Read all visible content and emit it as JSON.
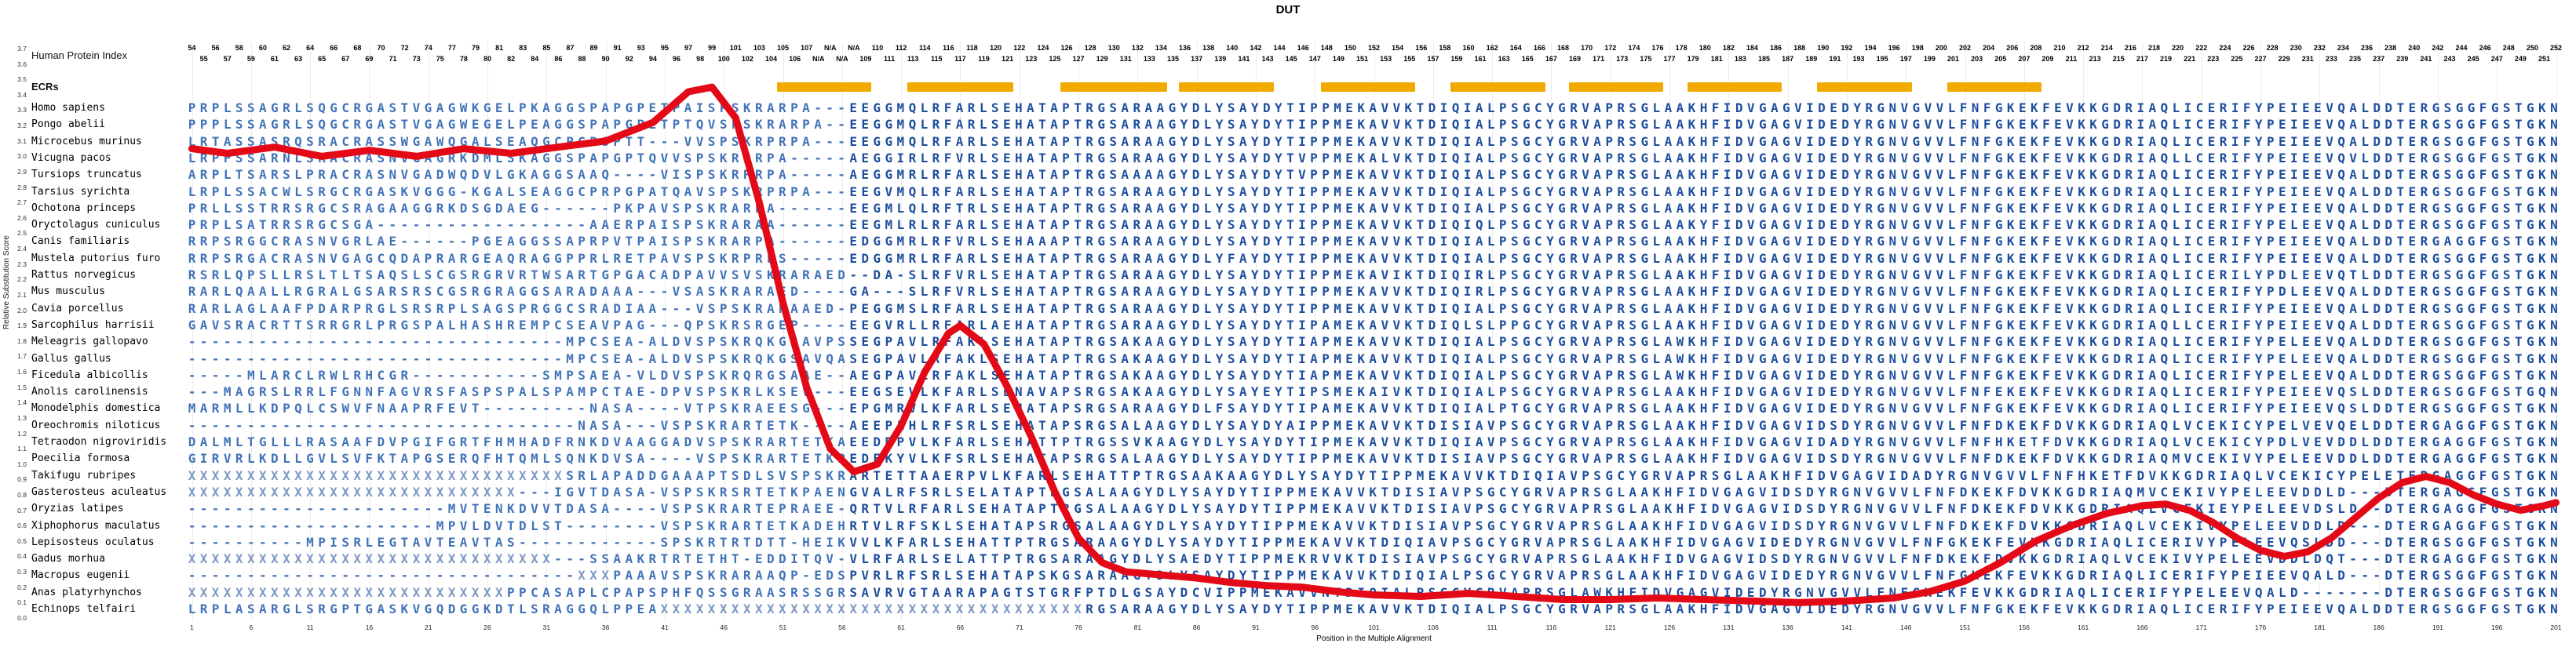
{
  "title": "DUT",
  "header": {
    "human_protein_index": "Human Protein Index",
    "ecrs_label": "ECRs"
  },
  "y_axis": {
    "title": "Relative Substitution Score",
    "labels": [
      "3.7",
      "3.6",
      "3.5",
      "3.4",
      "3.3",
      "3.2",
      "3.1",
      "3.0",
      "2.9",
      "2.8",
      "2.7",
      "2.6",
      "2.5",
      "2.4",
      "2.3",
      "2.2",
      "2.1",
      "2.0",
      "1.9",
      "1.8",
      "1.7",
      "1.6",
      "1.5",
      "1.4",
      "1.3",
      "1.2",
      "1.1",
      "1.0",
      "0.9",
      "0.8",
      "0.7",
      "0.6",
      "0.5",
      "0.4",
      "0.3",
      "0.2",
      "0.1",
      "0.0"
    ]
  },
  "x_axis": {
    "title": "Position in the Multiple Alignment",
    "ticks": [
      1,
      6,
      11,
      16,
      21,
      26,
      31,
      36,
      41,
      46,
      51,
      56,
      61,
      66,
      71,
      76,
      81,
      86,
      91,
      96,
      101,
      106,
      111,
      116,
      121,
      126,
      131,
      136,
      141,
      146,
      151,
      156,
      161,
      166,
      171,
      176,
      181,
      186,
      191,
      196,
      201
    ]
  },
  "index_row_top": [
    "54",
    "56",
    "58",
    "60",
    "62",
    "64",
    "66",
    "68",
    "70",
    "72",
    "74",
    "77",
    "79",
    "81",
    "83",
    "85",
    "87",
    "89",
    "91",
    "93",
    "95",
    "97",
    "99",
    "101",
    "103",
    "105",
    "107",
    "N/A",
    "N/A",
    "110",
    "112",
    "114",
    "116",
    "118",
    "120",
    "122",
    "124",
    "126",
    "128",
    "130",
    "132",
    "134",
    "136",
    "138",
    "140",
    "142",
    "144",
    "146",
    "148",
    "150",
    "152",
    "154",
    "156",
    "158",
    "160",
    "162",
    "164",
    "166",
    "168",
    "170",
    "172",
    "174",
    "176",
    "178",
    "180",
    "182",
    "184",
    "186",
    "188",
    "190",
    "192",
    "194",
    "196",
    "198",
    "200",
    "202",
    "204",
    "206",
    "208",
    "210",
    "212",
    "214",
    "216",
    "218",
    "220",
    "222",
    "224",
    "226",
    "228",
    "230",
    "232",
    "234",
    "236",
    "238",
    "240",
    "242",
    "244",
    "246",
    "248",
    "250",
    "252"
  ],
  "index_row_bottom": [
    "55",
    "57",
    "59",
    "61",
    "63",
    "65",
    "67",
    "69",
    "71",
    "73",
    "75",
    "78",
    "80",
    "82",
    "84",
    "86",
    "88",
    "90",
    "92",
    "94",
    "96",
    "98",
    "100",
    "102",
    "104",
    "106",
    "N/A",
    "N/A",
    "109",
    "111",
    "113",
    "115",
    "117",
    "119",
    "121",
    "123",
    "125",
    "127",
    "129",
    "131",
    "133",
    "135",
    "137",
    "139",
    "141",
    "143",
    "145",
    "147",
    "149",
    "151",
    "153",
    "155",
    "157",
    "159",
    "161",
    "163",
    "165",
    "167",
    "169",
    "171",
    "173",
    "175",
    "177",
    "179",
    "181",
    "183",
    "185",
    "187",
    "189",
    "191",
    "193",
    "195",
    "197",
    "199",
    "201",
    "203",
    "205",
    "207",
    "209",
    "211",
    "213",
    "215",
    "217",
    "219",
    "221",
    "223",
    "225",
    "227",
    "229",
    "231",
    "233",
    "235",
    "237",
    "239",
    "241",
    "243",
    "245",
    "247",
    "249",
    "251"
  ],
  "ecr_regions": [
    [
      51,
      58
    ],
    [
      62,
      70
    ],
    [
      75,
      83
    ],
    [
      85,
      92
    ],
    [
      97,
      104
    ],
    [
      108,
      115
    ],
    [
      118,
      125
    ],
    [
      128,
      135
    ],
    [
      139,
      146
    ],
    [
      150,
      157
    ]
  ],
  "species": [
    {
      "name": "Homo sapiens",
      "sequence": "PRPLSSAGRLSQGCRGASTVGAGWKGELPKAGGSPAPGPETPAISPSKRARPA---EEGGMQLRFARLSEHATAPTRGSARAAGYDLYSAYDYTIPPMEKAVVKTDIQIALPSGCYGRVAPRSGLAAKHFIDVGAGVIDEDYRGNVGVVLFNFGKEKFEVKKGDRIAQLICERIFYPEIEEVQALDDTERGSGGFGSTGKN"
    },
    {
      "name": "Pongo abelii",
      "sequence": "PPPLSSAGRLSQGCRGASTVGAGWEGELPEAGGSPAPGPETPTQVSPSKRARPA--EEGGMQLRFARLSEHATAPTRGSARAAGYDLYSAYDYTIPPMEKAVVKTDIQIALPSGCYGRVAPRSGLAAKHFIDVGAGVIDEDYRGNVGVVLFNFGKEKFEVKKGDRIAQLICERIFYPEIEEVQALDDTERGSGGFGSTGKN"
    },
    {
      "name": "Microcebus murinus",
      "sequence": "LRTASSASRQSRACRASSWGAWQGALSEAQGCPGPSPTT---VVSPSKRPRPA---EEGGMQLRFARLSEHATAPTRGSARAAGYDLYSAYDYTIPPMEKAVVKTDIQIALPSGCYGRVAPRSGLAAKHFIDVGAGVIDEDYRGNVGVVLFNFGKEKFEVKKGDRIAQLICERIFYPEIEEVQALDDTERGSGGFGSTGKN"
    },
    {
      "name": "Vicugna pacos",
      "sequence": "LRPPSSARNLSRACRASNVGAGRKDMLSKAGGSPAPGPTQVVSPSKRPRPA-----AEGGIRLRFVRLSEHATAPTRGSARAAGYDLYSAYDYTVPPMEKALVKTDIQIALPSGCYGRVAPRSGLAAKHFIDVGAGVIDEDYRGNVGVVLFNFGKEKFEVKKGDRIAQLLCERIFYPEIEEVQVLDDTERGSGGFGSTGKN"
    },
    {
      "name": "Tursiops truncatus",
      "sequence": "ARPLTSARSLPRACRASNVGADWQDVLGKAGGSAAQ----VISPSKRPRPA-----AEGGMRLRFARLSEHATAPTRGSAAAAGYDLYSAYDYTVPPMEKAVVKTDIQIALPSGCYGRVAPRSGLAAKHFIDVGAGVIDEDYRGNVGVVLFNFGKEKFEVKKGDRIAQLICERIFYPEIEEVQALDDTERGSGGFGSTGKN"
    },
    {
      "name": "Tarsius syrichta",
      "sequence": "LRPLSSACWLSRGCRGASKVGGG-KGALSEAGGCPRPGPATQAVSPSKRPRPA---EEGVMQLRFARLSEHATAPTRGSARAAGYDLYSAYDYTIPPMEKAVVKTDIQIALPSGCYGRVAPRSGLAAKHFIDVGAGVIDEDYRGNVGVVLFNFGKEKFEVKKGDRIAQLICERIFYPEIEEVQALDDTERGSGGFGSTGKN"
    },
    {
      "name": "Ochotona princeps",
      "sequence": "PRLLSSTRRSRGCSRAGAAGGRKDSGDAEG------PKPAVSPSKRARPA------EEGMLQLRFTRLSEHATAPTRGSARAAGYDLYSAYDYTIPPMEKAVVKTDIQIALPSGCYGRVAPRSGLAAKHFIDVGAGVIDEDYRGNVGVVLFNFGKEKFEVKKGDRIAQLICERIFYPEIEEVQALDDTERGSGGFGSTGKN"
    },
    {
      "name": "Oryctolagus cuniculus",
      "sequence": "PRPLSATRRSRGCSGA------------------AAERPAISPSKRARAA------EEGMLRLRFARLSEHATAPTRGSARAAGYDLYSAYDYTIPPMEKAVVKTDIQIQLPSGCYGRVAPRSGLAAKYFIDVGAGVIDEDYRGNVGVVLFNFGKEKFEVKKGDRIAQLICERIFYPELEEVQALDDTERGSGGFGSTGKN"
    },
    {
      "name": "Canis familiaris",
      "sequence": "RRPSRGGCRASNVGRLAE------PGEAGGSSAPRPVTPAISPSKRARPA------EDGGMRLRFVRLSEHAAAPTRGSARAAGYDLYSAYDYTIPPMEKAVVKTDIQIALPSGCYGRVAPRSGLAAKHFIDVGAGVIDEDYRGNVGVVLFNFGKEKFEVKKGDRIAQLICERIFYPEIEEVQALDDTERGAGGFGSTGKN"
    },
    {
      "name": "Mustela putorius furo",
      "sequence": "RRPSRGACRASNVGAGCQDAPRARGEAQRAGGPPRLRETPAVSPSKRPRPS-----EDGGMRLRFARLSEHATAPTRGSARAAGYDLYFAYDYTIPPMEKAVVKTDIQIALPSGCYGRVAPRSGLAAKHFIDVGAGVIDEDYRGNVGVVLFNFGKEKFEVKKGDRIAQLICERIFYPEIEEVQALDDTERGSGGFGSTGKN"
    },
    {
      "name": "Rattus norvegicus",
      "sequence": "RSRLQPSLLRSLTLTSAQSLSCGSRGRVRTWSARTGPGACADPAVVSVSKRARAED--DA-SLRFVRLSEHATAPTRGSARAAGYDLYSAYDYTIPPMEKAVIKTDIQIRLPSGCYGRVAPRSGLAAKHFIDVGAGVIDEDYRGNVGVVLFNFGKEKFEVKKGDRIAQLICERILYPDLEEVQTLDDTERGSGGFGSTGKN"
    },
    {
      "name": "Mus musculus",
      "sequence": "RARLQAALLRGRALGSARSRSCGSRGRAGGSARADAAA---VSASKRARAED----GA---SLRFVRLSEHATAPTRGSARAAGYDLYSAYDYTIPPMEKAVVKTDIQIRLPSGCYGRVAPRSGLAAKHFIDVGAGVIDEDYRGNVGVVLFNFGKEKFEVKKGDRIAQLICERIFYPDLEEVQALDDTERGSGGFGSTGKN"
    },
    {
      "name": "Cavia porcellus",
      "sequence": "RARLAGLAAFPDARPRGLSRSRPLSAGSPRGGCSRADIAA---VSPSKRARAAED-PEGGMSLRFARLSEHATAPTRGSARAAGYDLYSAYDYTIPPMEKAVVKTDIQIALPSGCYGRVAPRSGLAAKHFIDVGAGVIDEDYRGNVGVVLFNFGKEKFEVKKGDRIAQLICERIFYPEIEEVQALDDTERGSGGFGSTGKN"
    },
    {
      "name": "Sarcophilus harrisii",
      "sequence": "GAVSRACRTTSRRGRLPRGSPALHASHREMPCSEAVPAG---QPSKRSRGEP----EEGVRLLRFARLAEHATAPTRGSARAAGYDLYSAYDYTIPAMEKAVVKTDIQLSLPPGCYGRVAPRSGLAAKHFIDVGAGVIDEDYRGNVGVVLFNFGKEKFEVKKGDRIAQLLCERIFYPEIEEVQALDDTERGSGGFGSTGKN"
    },
    {
      "name": "Meleagris gallopavo",
      "sequence": "--------------------------------MPCSEA-ALDVSPSKRQKGSAVPSSEGPAVLRFAKLSEHATAPTRGSAKAAGYDLYSAYDYTIAPMEKAVVKTDIQIALPSGCYGRVAPRSGLAWKHFIDVGAGVIDEDYRGNVGVVLFNFGKEKFEVKKGDRIAQLICERIFYPELEEVQALDDTERGSGGFGSTGKN"
    },
    {
      "name": "Gallus gallus",
      "sequence": "--------------------------------MPCSEA-ALDVSPSKRQKGSAVQASEGPAVLRFAKLSEHATAPTRGSAKAAGYDLYSAYDYTIAPMEKAVVKTDIQIALPSGCYGRVAPRSGLAWKHFIDVGAGVIDEDYRGNVGVVLFNFGKEKFEVKKGDRIAQLICERIFYPELEEVQALDDTERGSGGFGSTGKN"
    },
    {
      "name": "Ficedula albicollis",
      "sequence": "-----MLARCLRWLRHCGR-----------SMPSAEA-VLDVSPSKRQRGSAAE--AEGPAVLRFAKLSEHATAPTRGSAKAAGYDLYSAYDYTIAPMEKAVVKTDIQIALPSGCYGRVAPRSGLAWKHFIDVGAGVIDEDYRGNVGVVLFNFGKEKFEVKKGDRIAQLICERIFYPELEEVQALDDTERGSGGFGSTGKN"
    },
    {
      "name": "Anolis carolinensis",
      "sequence": "---MAGRSLRRLFGNNFAGVRSFASPSPALSPAMPCTAE-DPVSPSKRLKSEV---EEGSEVLKFARLSENAVAPSRGSAKAAGYDLYSAYEYTIPSMEKAIVKTDIQIALPSGCYGRVAPRSGLAAKHFIDVGAGVIDEDYRGNVGVVLFNFEKEKFEVKKGDRIAQLICERIFYPEIEEVQSLDDTERGSGGFGSTGQN"
    },
    {
      "name": "Monodelphis domestica",
      "sequence": "MARMLLKDPQLCSWVFNAAPRFEVT---------NASA----VTPSKRAEESG---EPGMRVLKFARLSEHATAPSRGSARAAGYDLFSAYDYTIPAMEKAVVKTDIQIALPTGCYGRVAPRSGLAAKHFIDVGAGVIDEDYRGNVGVVLFNFGKEKFEVKKGDRIAQLICERIFYPEIEEVQSLDDTERGSGGFGSTGKN"
    },
    {
      "name": "Oreochromis niloticus",
      "sequence": "---------------------------------NASA---VSPSKRARTETK----AEEPLHLRFSRLSEHATAPSRGSALAAGYDLYSAYDYAIPPMEKAVVKTDISIAVPSGCYGRVAPRSGLAAKHFIDVGAGVIDSDYRGNVGVVLFNFDKEKFDVKKGDRIAQLVCEKICYPELVEVQELDDTERGAGGFGSTGKN"
    },
    {
      "name": "Tetraodon nigroviridis",
      "sequence": "DALMLTGLLLRASAAFDVPGIFGRTFHMHADFRNKDVAAGGADVSPSKRARTETKAEEDRPVLKFARLSEHATTPTRGSSVKAAGYDLYSAYDYTIPMEKAVVKTDIQIAVPSGCYGRVAPRSGLAAKHFIDVGAGVIDADYRGNVGVVLFNFHKETFDVKKGDRIAQLVCEKICYPDLVEVDDLDDTERGAGGFGSTGKN"
    },
    {
      "name": "Poecilia formosa",
      "sequence": "GIRVRLKDLLGVLSVFKTAPGSERQFHTQMLSQNKDVSA----VSPSKRARTETKPEDEKYVLKFSRLSEHATAPSRGSALAAGYDLYSAYDYTIPPMEKAVVKTDISIAVPSGCYGRVAPRSGLAAKHFIDVGAGVIDSDYRGNVGVVLFNFDKEKFDVKKGDRIAQMVCEKIVYPELEEVDDLDDTERGAGGFGSTGKN"
    },
    {
      "name": "Takifugu rubripes",
      "sequence": "XXXXXXXXXXXXXXXXXXXXXXXXXXXXXXXXSRLAPADDGAAAPTSDLSVSPSKRARTETTAAERPVLKFARLSEHATTPTRGSAAKAAGYDLYSAYDYTIPPMEKAVVKTDIQIAVPSGCYGRVAPRSGLAAKHFIDVGAGVIDADYRGNVGVVLFNFHKETFDVKKGDRIAQLVCEKICYPELETERGAGGFGSTGKN"
    },
    {
      "name": "Gasterosteus aculeatus",
      "sequence": "XXXXXXXXXXXXXXXXXXXXXXXXXXXX---IGVTDASA-VSPSKRSRTETKPAENGVALRFSRLSELATAPTRGSALAAGYDLYSAYDYTIPPMEKAVVKTDISIAVPSGCYGRVAPRSGLAAKHFIDVGAGVIDSDYRGNVGVVLFNFDKEKFDVKKGDRIAQMVCEKIVYPELEEVDDLD---DTERGAGGFGSTGKN"
    },
    {
      "name": "Oryzias latipes",
      "sequence": "----------------------MVTENKDVVTDASA----VSPSKRARTEPRAEE-QRTVLRFARLSEHATAPTRGSALAAGYDLYSAYDYTIPPMEKAVVKTDISIAVPSGCYGRVAPRSGLAAKHFIDVGAGVIDSDYRGNVGVVLFNFDKEKFDVKKGDRIAQLVCEKIEYPELEEVDSLD--DTERGAGGFGSTGKN"
    },
    {
      "name": "Xiphophorus maculatus",
      "sequence": "---------------------MPVLDVTDLST--------VSPSKRARTETKADEHRTVLRFSKLSEHATAPSRGSALAAGYDLYSAYDYTIPPMEKAVVKTDISIAVPSGCYGRVAPRSGLAAKHFIDVGAGVIDSDYRGNVGVVLFNFDKEKFDVKKGDRIAQLVCEKIVYPELEEVDDLD---DTERGAGGFGSTGKN"
    },
    {
      "name": "Lepisosteus oculatus",
      "sequence": "----------MPISRLEGTAVTEAVTAS------------SPSKRTRTDTT-HEIKVVLKFARLSEHATTPTRGSARAAGYDLYSAYDYTIPPMEKAVVKTDIQIAVPSGCYGRVAPRSGLAAKHFIDVGAGVIDEDYRGNVGVVLFNFGKEKFEVKKGDRIAQLICERIVYPELEEVQSLDD---DTERGSGGFGSTGKN"
    },
    {
      "name": "Gadus morhua",
      "sequence": "XXXXXXXXXXXXXXXXXXXXXXXXXXXXXXX---SSAAKRTRTETHT-EDDITQV-VLRFARLSELATTPTRGSARAAGYDLYSAEDYTIPPMEKRVVKTDISIAVPSGCYGRVAPRSGLAAKHFIDVGAGVIDSDYRGNVGVVLFNFDKEKFDVKKGDRIAQLVCEKIVYPELEEVDDLDQT---DTERGAGGFGSTGKN"
    },
    {
      "name": "Macropus eugenii",
      "sequence": "---------------------------------XXXPAAAVSPSKRARAAQP-EDSPVRLRFSRLSEHATAPSKGSARAAGYDLYSAYDYTIPPMEKAVVKTDIQIALPSGCYGRVAPRSGLAAKHFIDVGAGVIDEDYRGNVGVVLFNFGKEKFEVKKGDRIAQLICERIFYPEIEEVQALD---DTERGSGGFGSTGKN"
    },
    {
      "name": "Anas platyrhynchos",
      "sequence": "XXXXXXXXXXXXXXXXXXXXXXXXXXXPPCASAPLCPAPSPHFQSSGRAASRSSGRSAVRVGTAARAPAGTSTGRFPTDLGSAYDCVIPPMEKAVVNTDIQIALPSGCYGRVAPRSGLAWKHFIDVGAGVIDEDYRGNVGVVLFNFGKEKFEVKKGDRIAQLICERIFYPELEEVQALD-------DTERGSGGFGSTGKN"
    },
    {
      "name": "Echinops telfairi",
      "sequence": "LRPLASARGLSRGPTGASKVGQDGGKDTLSRAGGQLPPEAXXXXXXXXXXXXXXXXXXXXXXXXXXXXXXXXXXXXRGSARAAGYDLYSAYDYTIPPMEKAVVKTDIQIALPSGCYGRVAPRSGLAAKHFIDVGAGVIDEDYRGNVGVVLFNFGKEKFEVKKGDRIAQLICERIFYPEIEEVQALDDTERGSGGFGSTGKN"
    }
  ],
  "chart_data": {
    "type": "line",
    "title": "DUT",
    "xlabel": "Position in the Multiple Alignment",
    "ylabel": "Relative Substitution Score",
    "xlim": [
      1,
      201
    ],
    "ylim": [
      0,
      3.7
    ],
    "grid": "faint-vertical",
    "legend_position": "none",
    "ecr_regions": [
      [
        51,
        58
      ],
      [
        62,
        70
      ],
      [
        75,
        83
      ],
      [
        85,
        92
      ],
      [
        97,
        104
      ],
      [
        108,
        115
      ],
      [
        118,
        125
      ],
      [
        128,
        135
      ],
      [
        139,
        146
      ],
      [
        150,
        157
      ]
    ],
    "series": [
      {
        "name": "Relative Substitution Score",
        "x": [
          1,
          4,
          8,
          12,
          16,
          20,
          24,
          28,
          32,
          36,
          40,
          43,
          45,
          47,
          49,
          51,
          53,
          55,
          57,
          59,
          61,
          63,
          65,
          66,
          68,
          70,
          72,
          74,
          76,
          78,
          80,
          83,
          86,
          89,
          92,
          95,
          98,
          101,
          105,
          109,
          113,
          117,
          121,
          125,
          129,
          133,
          137,
          141,
          145,
          148,
          151,
          154,
          157,
          160,
          163,
          166,
          168,
          170,
          172,
          174,
          176,
          178,
          180,
          182,
          184,
          186,
          188,
          190,
          192,
          194,
          196,
          198,
          200,
          201
        ],
        "y": [
          3.05,
          3.02,
          3.06,
          3.0,
          3.04,
          3.0,
          3.05,
          3.02,
          3.06,
          3.1,
          3.22,
          3.42,
          3.45,
          3.25,
          2.7,
          2.05,
          1.5,
          1.1,
          0.95,
          1.0,
          1.25,
          1.6,
          1.85,
          1.9,
          1.78,
          1.5,
          1.18,
          0.82,
          0.52,
          0.36,
          0.3,
          0.28,
          0.26,
          0.23,
          0.21,
          0.2,
          0.17,
          0.15,
          0.14,
          0.16,
          0.14,
          0.12,
          0.12,
          0.13,
          0.12,
          0.11,
          0.1,
          0.11,
          0.13,
          0.17,
          0.24,
          0.36,
          0.5,
          0.6,
          0.68,
          0.73,
          0.74,
          0.7,
          0.62,
          0.52,
          0.44,
          0.4,
          0.43,
          0.52,
          0.65,
          0.78,
          0.88,
          0.92,
          0.88,
          0.8,
          0.74,
          0.7,
          0.73,
          0.75
        ]
      }
    ]
  },
  "colors": {
    "score_line_red": "#E30917",
    "ecr_orange": "#F2A900",
    "sequence_blue_dark": "#1E4E9D",
    "sequence_blue_light": "#4273B8",
    "sequence_x_gray_blue": "#7D99C4",
    "background": "#FFFFFF"
  }
}
